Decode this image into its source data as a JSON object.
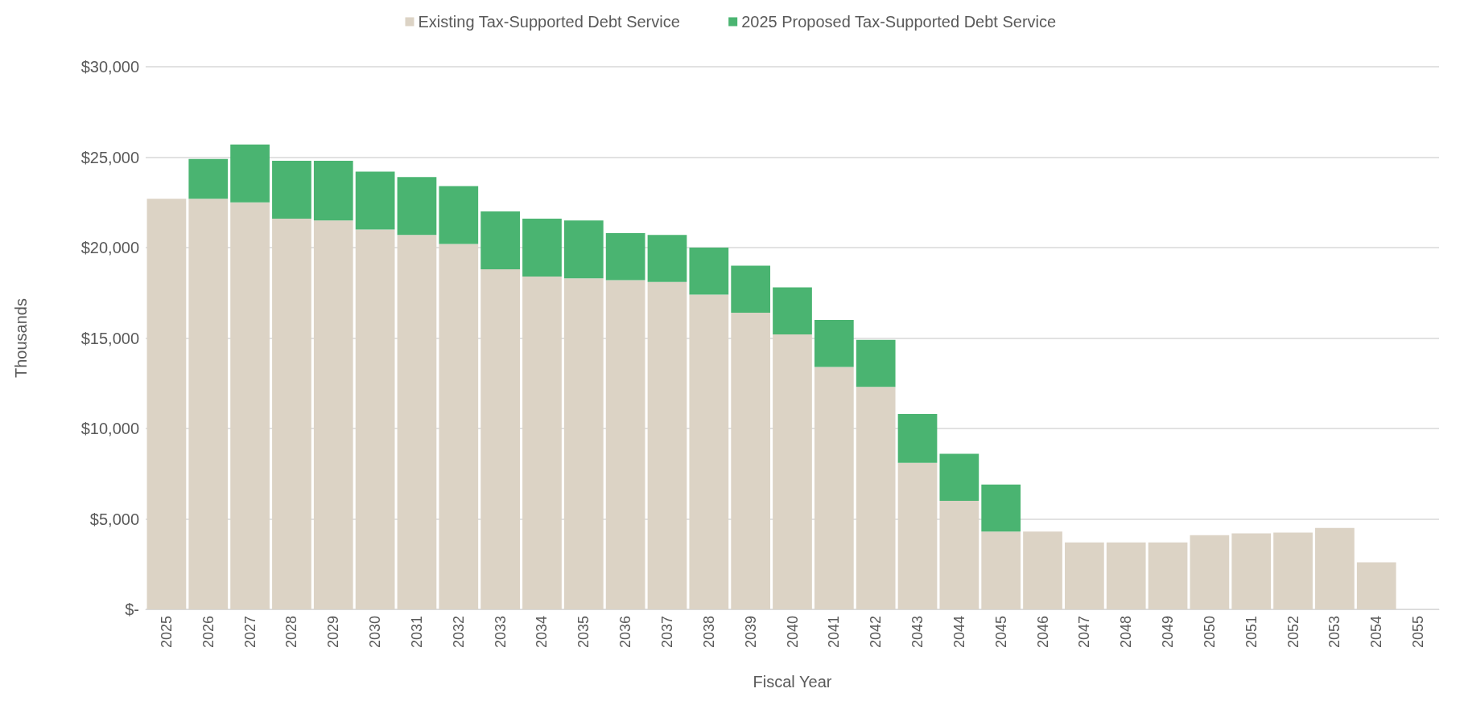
{
  "chart_data": {
    "type": "bar",
    "stacked": true,
    "xlabel": "Fiscal Year",
    "ylabel": "Thousands",
    "categories": [
      "2025",
      "2026",
      "2027",
      "2028",
      "2029",
      "2030",
      "2031",
      "2032",
      "2033",
      "2034",
      "2035",
      "2036",
      "2037",
      "2038",
      "2039",
      "2040",
      "2041",
      "2042",
      "2043",
      "2044",
      "2045",
      "2046",
      "2047",
      "2048",
      "2049",
      "2050",
      "2051",
      "2052",
      "2053",
      "2054",
      "2055"
    ],
    "series": [
      {
        "name": "Existing Tax-Supported Debt Service",
        "color": "#dcd3c5",
        "values": [
          22700,
          22700,
          22500,
          21600,
          21500,
          21000,
          20700,
          20200,
          18800,
          18400,
          18300,
          18200,
          18100,
          17400,
          16400,
          15200,
          13400,
          12300,
          8100,
          6000,
          4300,
          4300,
          3700,
          3700,
          3700,
          4100,
          4200,
          4250,
          4500,
          2600,
          0
        ]
      },
      {
        "name": "2025 Proposed Tax-Supported Debt Service",
        "color": "#4ab471",
        "values": [
          null,
          2200,
          3200,
          3200,
          3300,
          3200,
          3200,
          3200,
          3200,
          3200,
          3200,
          2600,
          2600,
          2600,
          2600,
          2600,
          2600,
          2600,
          2700,
          2600,
          2600,
          null,
          null,
          null,
          null,
          null,
          null,
          null,
          null,
          null,
          null
        ]
      }
    ],
    "ylim": [
      0,
      30000
    ],
    "yticks": [
      {
        "value": 0,
        "label": "$-"
      },
      {
        "value": 5000,
        "label": "$5,000"
      },
      {
        "value": 10000,
        "label": "$10,000"
      },
      {
        "value": 15000,
        "label": "$15,000"
      },
      {
        "value": 20000,
        "label": "$20,000"
      },
      {
        "value": 25000,
        "label": "$25,000"
      },
      {
        "value": 30000,
        "label": "$30,000"
      }
    ],
    "grid": "y",
    "legend": "top"
  }
}
